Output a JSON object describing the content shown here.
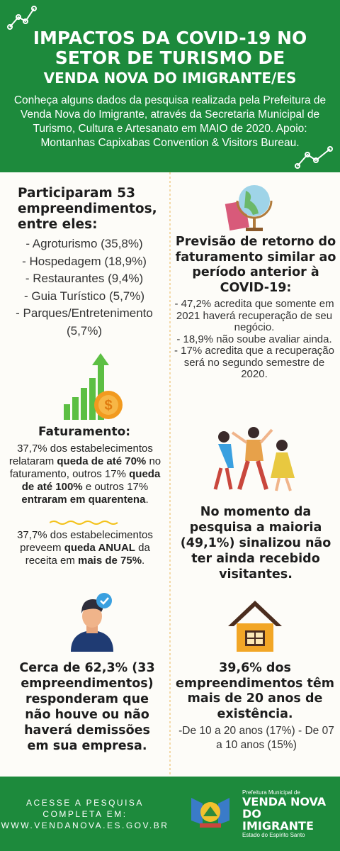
{
  "header": {
    "title_lines": [
      "IMPACTOS DA COVID-19 NO",
      "SETOR DE TURISMO DE",
      "VENDA NOVA DO IMIGRANTE/ES"
    ],
    "description": "Conheça alguns dados da pesquisa realizada pela Prefeitura de Venda Nova do Imigrante, através da Secretaria Municipal de Turismo, Cultura e Artesanato em MAIO de 2020. Apoio: Montanhas Capixabas Convention & Visitors Bureau."
  },
  "participants": {
    "heading": "Participaram 53 empreendimentos, entre eles:",
    "items": [
      "- Agroturismo (35,8%)",
      "- Hospedagem (18,9%)",
      "- Restaurantes (9,4%)",
      "- Guia Turístico (5,7%)",
      "- Parques/Entretenimento (5,7%)"
    ]
  },
  "forecast": {
    "heading": "Previsão de retorno do faturamento similar ao período anterior à COVID-19:",
    "items": [
      "- 47,2% acredita que somente em 2021 haverá recuperação de seu negócio.",
      "- 18,9% não soube avaliar ainda.",
      "- 17% acredita que a recuperação será no segundo semestre de 2020."
    ]
  },
  "revenue": {
    "heading": "Faturamento:",
    "paragraph_1": [
      {
        "text": "37,7% dos estabelecimentos relataram ",
        "bold": false
      },
      {
        "text": "queda de até 70%",
        "bold": true
      },
      {
        "text": " no faturamento, outros 17% ",
        "bold": false
      },
      {
        "text": "queda de até 100%",
        "bold": true
      },
      {
        "text": " e outros 17% ",
        "bold": false
      },
      {
        "text": "entraram em quarentena",
        "bold": true
      },
      {
        "text": ".",
        "bold": false
      }
    ],
    "paragraph_2": [
      {
        "text": "37,7% dos estabelecimentos preveem ",
        "bold": false
      },
      {
        "text": "queda ANUAL",
        "bold": true
      },
      {
        "text": " da receita em ",
        "bold": false
      },
      {
        "text": "mais de 75%",
        "bold": true
      },
      {
        "text": ".",
        "bold": false
      }
    ]
  },
  "visitors": {
    "text": "No momento da pesquisa a maioria (49,1%) sinalizou não ter ainda recebido visitantes."
  },
  "layoffs": {
    "text": "Cerca de 62,3% (33 empreendimentos) responderam que não houve ou não haverá demissões em sua empresa."
  },
  "age": {
    "heading": "39,6% dos empreendimentos têm mais de 20 anos de existência.",
    "details": "-De 10 a 20 anos (17%) - De 07 a 10 anos (15%)"
  },
  "footer": {
    "access_lines": [
      "ACESSE A PESQUISA",
      "COMPLETA EM:",
      "WWW.VENDANOVA.ES.GOV.BR"
    ],
    "logo": {
      "top": "Prefeitura Municipal de",
      "name_lines": [
        "VENDA NOVA",
        "DO IMIGRANTE"
      ],
      "state": "Estado do Espírito Santo"
    }
  }
}
